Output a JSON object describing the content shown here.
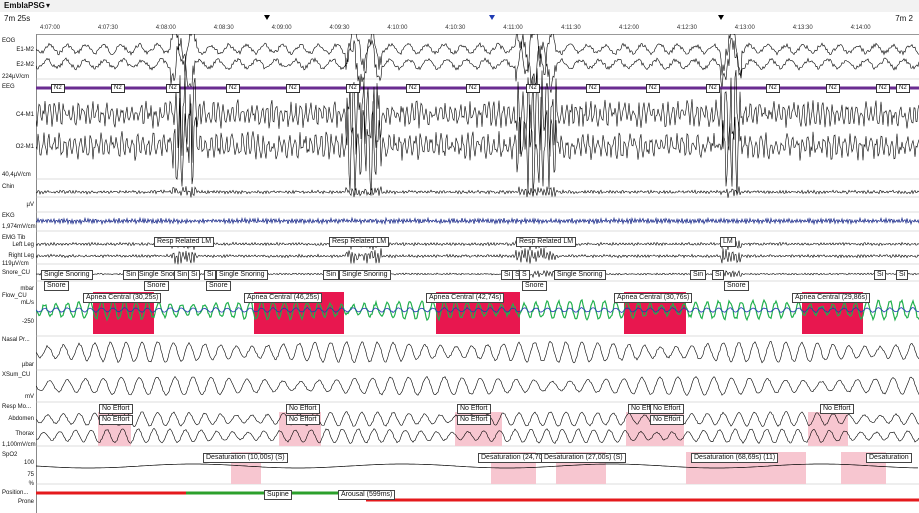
{
  "app": {
    "title": "EmblaPSG",
    "menu_icon": "chevron-down-icon"
  },
  "timebar": {
    "window_left": "7m 25s",
    "window_right": "7m 2",
    "ticks": [
      "4:07:00",
      "4:07:30",
      "4:08:00",
      "4:08:30",
      "4:09:00",
      "4:09:30",
      "4:10:00",
      "4:10:30",
      "4:11:00",
      "4:11:30",
      "4:12:00",
      "4:12:30",
      "4:13:00",
      "4:13:30",
      "4:14:00"
    ]
  },
  "channels": {
    "eog": "EOG",
    "e1": "E1-M2",
    "e2": "E2-M2",
    "eog_scale": "224µV/cm",
    "eeg": "EEG",
    "c4": "C4-M1",
    "o2": "O2-M1",
    "eeg_scale": "40,4µV/cm",
    "chin": "Chin",
    "chin_unit": "µV",
    "ekg": "EKG",
    "ekg_scale": "1,974mV/cm",
    "emg": "EMG Tib",
    "left_leg": "Left Leg",
    "right_leg": "Right Leg",
    "leg_scale": "119µV/cm",
    "snore": "Snore_CU",
    "snore_unit": "mbar",
    "flow": "Flow_CU",
    "flow_unit": "mL/s",
    "flow_tick_neg": "-250",
    "nasal": "Nasal Pr...",
    "nasal_unit": "µbar",
    "xsum": "XSum_CU",
    "xsum_unit": "mV",
    "resp": "Resp Mo...",
    "abdomen": "Abdomen",
    "thorax": "Thorax",
    "resp_scale": "1,100mV/cm",
    "spo2": "SpO2",
    "spo2_unit": "%",
    "spo2_tick_100": "100",
    "spo2_tick_75": "75",
    "position": "Position...",
    "prone": "Prone"
  },
  "stages": [
    "N2",
    "N2",
    "N2",
    "N2",
    "N2",
    "N2",
    "N2",
    "N2",
    "N2",
    "N2",
    "N2",
    "N2",
    "N2",
    "N2",
    "N2",
    "N2"
  ],
  "events": {
    "resp_lm": [
      "Resp Related LM",
      "Resp Related LM",
      "Resp Related LM"
    ],
    "lm": "LM",
    "single_snoring": [
      "Single Snoring",
      "Single Snoring",
      "Single Snoring",
      "Single Snoring",
      "Single Snoring"
    ],
    "snore_short": [
      "Sin",
      "Sin",
      "Si",
      "Si",
      "Sin",
      "Si",
      "Si",
      "S",
      "Sin",
      "Si",
      "Si",
      "Si"
    ],
    "snore": [
      "Snore",
      "Snore",
      "Snore",
      "Snore",
      "Snore"
    ],
    "apnea": [
      "Apnea Central (30,25s)",
      "Apnea Central (46,25s)",
      "Apnea Central (42,74s)",
      "Apnea Central (30,76s)",
      "Apnea Central (29,86s)"
    ],
    "no_effort": [
      "No Effort",
      "No Effort",
      "No Effort",
      "No Effort",
      "No Effort",
      "No Effort",
      "No Eff",
      "No Effort",
      "No Effort",
      "No Effort"
    ],
    "desat": [
      "Desaturation (10,00s) (S)",
      "Desaturation (24,70",
      "Desaturation (27,00s) (S)",
      "Desaturation (68,69s) (11)",
      "Desaturation"
    ],
    "position_label": "Supine",
    "arousal": "Arousal (599ms)"
  },
  "colors": {
    "apnea": "#e8174f",
    "no_effort": "#f7c6d0",
    "flow_green": "#22b14c",
    "flow_blue": "#1f3bb3",
    "stage_line": "#6a2c91",
    "ekg": "#1a2a8a",
    "position_red": "#e41a1c",
    "position_green": "#2ca02c"
  }
}
